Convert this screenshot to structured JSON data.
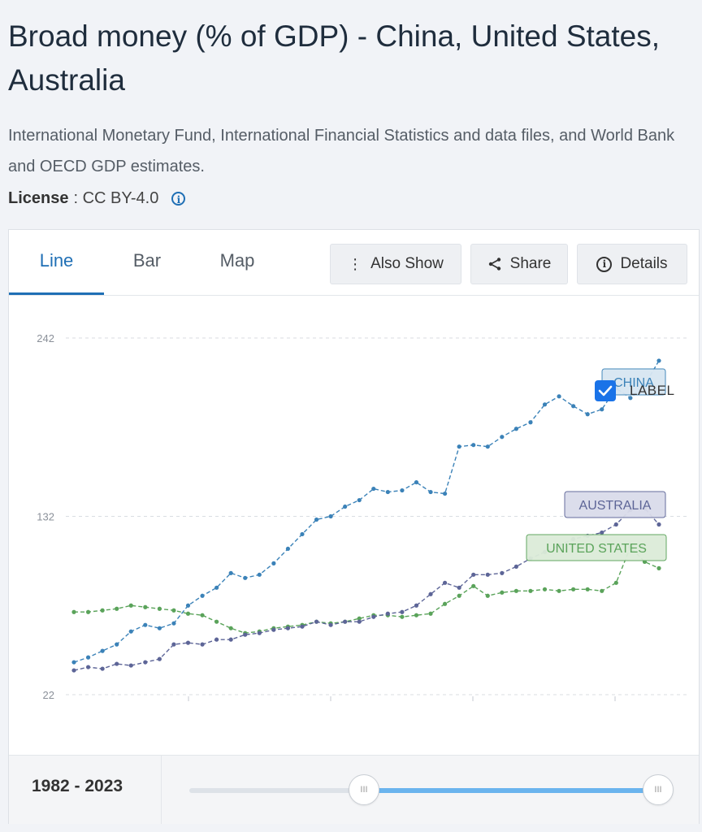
{
  "header": {
    "title": "Broad money (% of GDP) - China, United States, Australia",
    "source": "International Monetary Fund, International Financial Statistics and data files, and World Bank and OECD GDP estimates.",
    "license_label": "License",
    "license_value": ": CC BY-4.0"
  },
  "tabs": [
    {
      "label": "Line",
      "active": true
    },
    {
      "label": "Bar",
      "active": false
    },
    {
      "label": "Map",
      "active": false
    }
  ],
  "actions": {
    "also_show": "Also Show",
    "share": "Share",
    "details": "Details"
  },
  "label_toggle": {
    "text": "LABEL",
    "checked": true
  },
  "colors": {
    "accent": "#1f6fb5",
    "china": "#3b82b8",
    "australia": "#5d6597",
    "united_states": "#5aa35a"
  },
  "chart_data": {
    "type": "line",
    "x": [
      1982,
      1983,
      1984,
      1985,
      1986,
      1987,
      1988,
      1989,
      1990,
      1991,
      1992,
      1993,
      1994,
      1995,
      1996,
      1997,
      1998,
      1999,
      2000,
      2001,
      2002,
      2003,
      2004,
      2005,
      2006,
      2007,
      2008,
      2009,
      2010,
      2011,
      2012,
      2013,
      2014,
      2015,
      2016,
      2017,
      2018,
      2019,
      2020,
      2021,
      2022,
      2023
    ],
    "y_ticks": [
      22,
      132,
      242
    ],
    "ylim": [
      22,
      242
    ],
    "grid": true,
    "series": [
      {
        "name": "CHINA",
        "color": "#3b82b8",
        "values": [
          42,
          45,
          49,
          53,
          61,
          65,
          63,
          66,
          77,
          83,
          88,
          97,
          94,
          96,
          103,
          112,
          121,
          130,
          132,
          138,
          142,
          149,
          147,
          148,
          153,
          147,
          146,
          175,
          176,
          175,
          181,
          186,
          190,
          201,
          206,
          200,
          195,
          198,
          211,
          205,
          213,
          228
        ]
      },
      {
        "name": "AUSTRALIA",
        "color": "#5d6597",
        "values": [
          37,
          39,
          38,
          41,
          40,
          42,
          44,
          53,
          54,
          53,
          56,
          56,
          59,
          60,
          62,
          63,
          64,
          67,
          65,
          67,
          67,
          70,
          72,
          73,
          77,
          84,
          91,
          88,
          96,
          96,
          97,
          101,
          106,
          110,
          114,
          118,
          120,
          122,
          127,
          136,
          137,
          127
        ]
      },
      {
        "name": "UNITED STATES",
        "color": "#5aa35a",
        "values": [
          73,
          73,
          74,
          75,
          77,
          76,
          75,
          74,
          72,
          71,
          67,
          63,
          60,
          61,
          63,
          64,
          65,
          67,
          66,
          67,
          69,
          71,
          71,
          70,
          71,
          72,
          78,
          83,
          89,
          83,
          85,
          86,
          86,
          87,
          86,
          87,
          87,
          86,
          91,
          113,
          104,
          100
        ]
      }
    ]
  },
  "time_range": {
    "text": "1982 - 2023"
  }
}
